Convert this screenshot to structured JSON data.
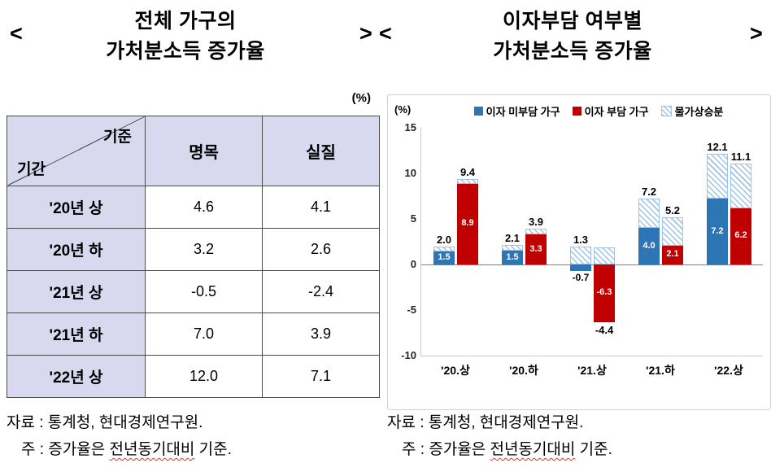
{
  "left_panel": {
    "nav_prev": "<",
    "nav_next": ">",
    "title_line1": "전체 가구의",
    "title_line2": "가처분소득 증가율",
    "unit_label": "(%)",
    "table": {
      "corner_top": "기준",
      "corner_bottom": "기간",
      "columns": [
        "명목",
        "실질"
      ],
      "rows": [
        {
          "period": "'20년 상",
          "nominal": "4.6",
          "real": "4.1"
        },
        {
          "period": "'20년 하",
          "nominal": "3.2",
          "real": "2.6"
        },
        {
          "period": "'21년 상",
          "nominal": "-0.5",
          "real": "-2.4"
        },
        {
          "period": "'21년 하",
          "nominal": "7.0",
          "real": "3.9"
        },
        {
          "period": "'22년 상",
          "nominal": "12.0",
          "real": "7.1"
        }
      ]
    },
    "source": "자료 : 통계청, 현대경제연구원.",
    "note_prefix": "주 : 증가율은 ",
    "note_wavy": "전년동기대비",
    "note_suffix": " 기준."
  },
  "right_panel": {
    "nav_prev": "<",
    "nav_next": ">",
    "title_line1": "이자부담 여부별",
    "title_line2": "가처분소득 증가율",
    "source": "자료 : 통계청, 현대경제연구원.",
    "note_prefix": "주 : 증가율은 ",
    "note_wavy": "전년동기대비",
    "note_suffix": " 기준."
  },
  "chart_data": {
    "type": "bar",
    "title": "이자부담 여부별 가처분소득 증가율",
    "unit": "(%)",
    "categories": [
      "'20.상",
      "'20.하",
      "'21.상",
      "'21.하",
      "'22.상"
    ],
    "ylim": [
      -10,
      15
    ],
    "yticks": [
      15,
      10,
      5,
      0,
      -5,
      -10
    ],
    "legend": [
      "이자 미부담 가구",
      "이자 부담 가구",
      "물가상승분"
    ],
    "legend_colors": [
      "#2e75b6",
      "#c00000",
      "hatch"
    ],
    "hatch_color": "#9dc3e6",
    "series": [
      {
        "name": "이자 미부담 가구",
        "color": "#2e75b6",
        "real": [
          1.5,
          1.5,
          -0.7,
          4.0,
          7.2
        ],
        "nominal": [
          2.0,
          2.1,
          1.3,
          7.2,
          12.1
        ]
      },
      {
        "name": "이자 부담 가구",
        "color": "#c00000",
        "real": [
          8.9,
          3.3,
          -6.3,
          2.1,
          6.2
        ],
        "nominal": [
          9.4,
          3.9,
          -4.4,
          5.2,
          11.1
        ]
      }
    ]
  }
}
